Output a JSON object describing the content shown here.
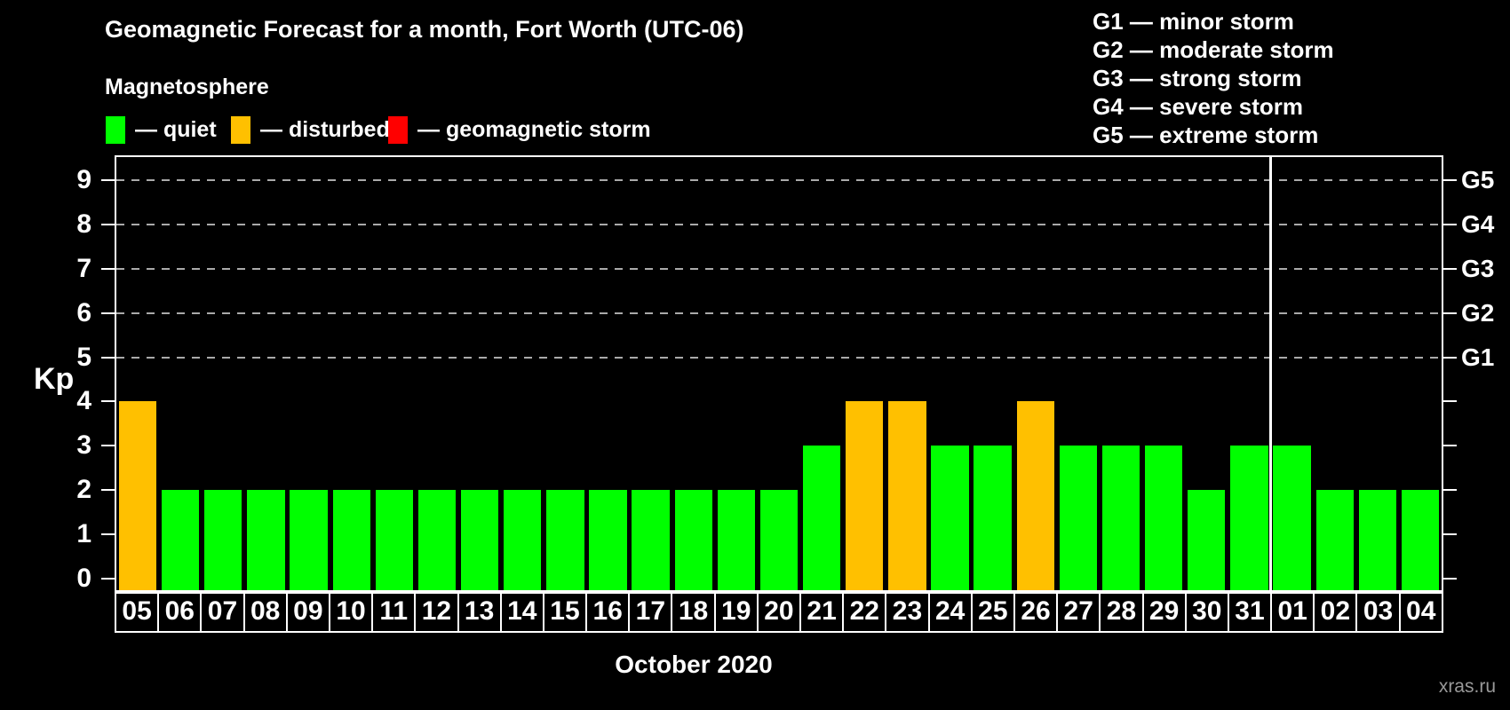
{
  "header": {
    "title": "Geomagnetic Forecast for a month, Fort Worth (UTC-06)",
    "subtitle": "Magnetosphere"
  },
  "legend": {
    "items": [
      {
        "label": "— quiet",
        "status": "quiet",
        "color": "#00ff00"
      },
      {
        "label": "— disturbed",
        "status": "disturbed",
        "color": "#ffc000"
      },
      {
        "label": "— geomagnetic storm",
        "status": "storm",
        "color": "#ff0000"
      }
    ]
  },
  "g_legend": {
    "items": [
      "G1 — minor storm",
      "G2 — moderate storm",
      "G3 — strong storm",
      "G4 — severe storm",
      "G5 — extreme storm"
    ]
  },
  "chart_data": {
    "type": "bar",
    "title": "Geomagnetic Forecast for a month, Fort Worth (UTC-06)",
    "ylabel": "Kp",
    "xlabel": "October 2020",
    "ylim": [
      0,
      9
    ],
    "y_ticks": [
      0,
      1,
      2,
      3,
      4,
      5,
      6,
      7,
      8,
      9
    ],
    "gridlines_at_kp": [
      5,
      6,
      7,
      8,
      9
    ],
    "grid_style": "dashed horizontal lines at Kp 5-9 matching G1-G5",
    "legend_position": "top-left",
    "right_axis_labels": [
      {
        "text": "G1",
        "kp": 5
      },
      {
        "text": "G2",
        "kp": 6
      },
      {
        "text": "G3",
        "kp": 7
      },
      {
        "text": "G4",
        "kp": 8
      },
      {
        "text": "G5",
        "kp": 9
      }
    ],
    "categories": [
      "05",
      "06",
      "07",
      "08",
      "09",
      "10",
      "11",
      "12",
      "13",
      "14",
      "15",
      "16",
      "17",
      "18",
      "19",
      "20",
      "21",
      "22",
      "23",
      "24",
      "25",
      "26",
      "27",
      "28",
      "29",
      "30",
      "31",
      "01",
      "02",
      "03",
      "04"
    ],
    "values": [
      4,
      2,
      2,
      2,
      2,
      2,
      2,
      2,
      2,
      2,
      2,
      2,
      2,
      2,
      2,
      2,
      3,
      4,
      4,
      3,
      3,
      4,
      3,
      3,
      3,
      2,
      3,
      3,
      2,
      2,
      2
    ],
    "statuses": [
      "disturbed",
      "quiet",
      "quiet",
      "quiet",
      "quiet",
      "quiet",
      "quiet",
      "quiet",
      "quiet",
      "quiet",
      "quiet",
      "quiet",
      "quiet",
      "quiet",
      "quiet",
      "quiet",
      "quiet",
      "disturbed",
      "disturbed",
      "quiet",
      "quiet",
      "disturbed",
      "quiet",
      "quiet",
      "quiet",
      "quiet",
      "quiet",
      "quiet",
      "quiet",
      "quiet",
      "quiet"
    ],
    "colors": {
      "quiet": "#00ff00",
      "disturbed": "#ffc000",
      "storm": "#ff0000"
    },
    "month_boundary_after_index": 26
  },
  "footer": {
    "month_label": "October 2020",
    "watermark": "xras.ru"
  }
}
